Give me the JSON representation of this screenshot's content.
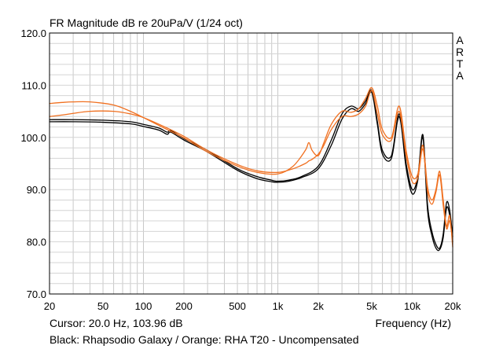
{
  "chart_data": {
    "type": "line",
    "title": "FR Magnitude dB re 20uPa/V (1/24 oct)",
    "xlabel": "Frequency (Hz)",
    "ylabel": "",
    "x_scale": "log",
    "xlim": [
      20,
      20000
    ],
    "ylim": [
      70,
      120
    ],
    "grid": true,
    "watermark": [
      "A",
      "R",
      "T",
      "A"
    ],
    "x_ticks": [
      {
        "value": 20,
        "label": "20"
      },
      {
        "value": 50,
        "label": "50"
      },
      {
        "value": 100,
        "label": "100"
      },
      {
        "value": 200,
        "label": "200"
      },
      {
        "value": 500,
        "label": "500"
      },
      {
        "value": 1000,
        "label": "1k"
      },
      {
        "value": 2000,
        "label": "2k"
      },
      {
        "value": 5000,
        "label": "5k"
      },
      {
        "value": 10000,
        "label": "10k"
      },
      {
        "value": 20000,
        "label": "20k"
      }
    ],
    "y_ticks": [
      {
        "value": 120,
        "label": "120.0"
      },
      {
        "value": 110,
        "label": "110.0"
      },
      {
        "value": 100,
        "label": "100.0"
      },
      {
        "value": 90,
        "label": "90.0"
      },
      {
        "value": 80,
        "label": "80.0"
      },
      {
        "value": 70,
        "label": "70.0"
      }
    ],
    "cursor_text": "Cursor: 20.0 Hz, 103.96 dB",
    "legend_text": "Black: Rhapsodio Galaxy / Orange: RHA T20 - Uncompensated",
    "series": [
      {
        "color": "#000000",
        "x": [
          20,
          30,
          50,
          80,
          100,
          130,
          150,
          160,
          200,
          300,
          500,
          700,
          900,
          1000,
          1200,
          1500,
          2000,
          2500,
          3000,
          3500,
          4000,
          4500,
          5000,
          5500,
          6000,
          7000,
          8000,
          9000,
          10000,
          11000,
          12000,
          13000,
          14000,
          15000,
          16000,
          17000,
          18000,
          19000,
          20000
        ],
        "y": [
          103.4,
          103.4,
          103.3,
          103.0,
          102.5,
          101.8,
          101.0,
          101.3,
          99.8,
          97.5,
          94.0,
          92.5,
          91.8,
          91.6,
          91.8,
          92.5,
          94.5,
          99.5,
          104.5,
          106.0,
          105.5,
          107.0,
          109.0,
          103.0,
          97.5,
          96.5,
          104.5,
          95.0,
          90.0,
          92.5,
          100.5,
          87.0,
          82.0,
          79.5,
          78.8,
          81.5,
          87.5,
          86.0,
          81.0
        ]
      },
      {
        "color": "#000000",
        "x": [
          20,
          30,
          50,
          80,
          100,
          130,
          150,
          160,
          200,
          300,
          500,
          700,
          900,
          1000,
          1200,
          1500,
          2000,
          2500,
          3000,
          3500,
          4000,
          4500,
          5000,
          5500,
          6000,
          7000,
          8000,
          9000,
          10000,
          11000,
          12000,
          13000,
          14000,
          15000,
          16000,
          17000,
          18000,
          19000,
          20000
        ],
        "y": [
          103.0,
          103.0,
          102.9,
          102.6,
          102.1,
          101.4,
          100.6,
          101.0,
          99.5,
          97.2,
          93.7,
          92.1,
          91.5,
          91.4,
          91.6,
          92.3,
          94.0,
          98.5,
          103.5,
          105.5,
          105.0,
          106.5,
          108.6,
          102.5,
          96.8,
          96.0,
          104.0,
          94.2,
          89.2,
          91.8,
          100.0,
          86.0,
          81.2,
          78.8,
          78.5,
          80.8,
          86.5,
          85.0,
          80.0
        ]
      },
      {
        "color": "#f07020",
        "x": [
          20,
          25,
          30,
          40,
          60,
          80,
          100,
          150,
          200,
          300,
          500,
          700,
          1000,
          1300,
          1600,
          1700,
          1800,
          2000,
          2200,
          2500,
          3000,
          3500,
          4000,
          4500,
          5000,
          5500,
          6000,
          7000,
          8000,
          9000,
          10000,
          11000,
          12000,
          13000,
          14000,
          15000,
          16000,
          17000,
          18000,
          19000,
          20000
        ],
        "y": [
          106.5,
          106.7,
          106.8,
          106.8,
          106.2,
          105.0,
          103.8,
          101.5,
          99.9,
          97.2,
          94.5,
          93.3,
          93.0,
          94.5,
          97.5,
          99.0,
          97.5,
          96.5,
          99.0,
          102.5,
          105.0,
          104.8,
          105.5,
          107.5,
          109.5,
          106.0,
          101.5,
          100.0,
          106.0,
          97.5,
          92.5,
          93.0,
          98.5,
          90.5,
          88.0,
          90.0,
          93.5,
          88.0,
          83.0,
          85.0,
          79.0
        ]
      },
      {
        "color": "#f07020",
        "x": [
          20,
          25,
          30,
          40,
          60,
          80,
          100,
          150,
          200,
          300,
          500,
          700,
          1000,
          1300,
          1600,
          1700,
          1800,
          2000,
          2200,
          2500,
          3000,
          3500,
          4000,
          4500,
          5000,
          5500,
          6000,
          7000,
          8000,
          9000,
          10000,
          11000,
          12000,
          13000,
          14000,
          15000,
          16000,
          17000,
          18000,
          19000,
          20000
        ],
        "y": [
          104.0,
          104.3,
          104.6,
          105.0,
          105.0,
          104.5,
          103.8,
          101.8,
          100.2,
          97.5,
          94.8,
          93.6,
          93.3,
          94.0,
          95.0,
          95.5,
          95.8,
          96.8,
          98.5,
          101.5,
          104.0,
          104.0,
          104.5,
          106.0,
          109.0,
          104.5,
          100.5,
          99.5,
          105.0,
          96.5,
          91.5,
          92.2,
          97.8,
          89.5,
          87.2,
          89.5,
          92.8,
          87.0,
          82.5,
          84.0,
          80.0
        ]
      }
    ]
  }
}
